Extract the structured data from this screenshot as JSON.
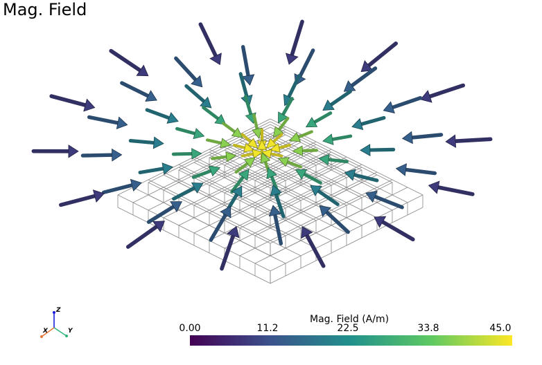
{
  "title": "Mag. Field",
  "colorbar": {
    "title": "Mag. Field (A/m)",
    "ticks": [
      "0.00",
      "11.2",
      "22.5",
      "33.8",
      "45.0"
    ],
    "range": [
      0.0,
      45.0
    ],
    "colormap": [
      "#440154",
      "#3b528b",
      "#21918c",
      "#5ec962",
      "#fde725"
    ]
  },
  "orientation_axes": {
    "x_label": "X",
    "y_label": "Y",
    "z_label": "Z",
    "x_color": "#e8773a",
    "y_color": "#2fb57a",
    "z_color": "#1a1adb"
  },
  "vector_field": {
    "description_units": "A/m",
    "arrow_magnitudes_sample": [
      2,
      6,
      10,
      14,
      18,
      22,
      26,
      30,
      34,
      38,
      42,
      45
    ]
  }
}
